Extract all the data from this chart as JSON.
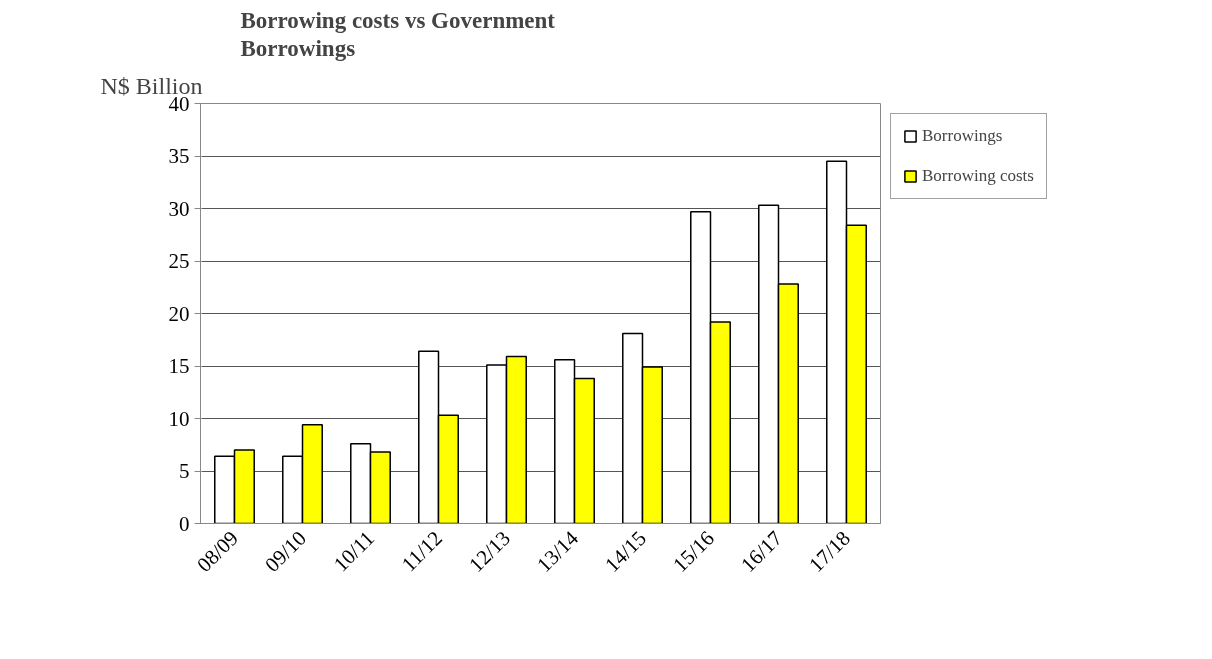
{
  "chart_data": {
    "type": "bar",
    "title": "Borrowing costs vs Government Borrowings",
    "ylabel": "N$ Billion",
    "categories": [
      "08/09",
      "09/10",
      "10/11",
      "11/12",
      "12/13",
      "13/14",
      "14/15",
      "15/16",
      "16/17",
      "17/18"
    ],
    "series": [
      {
        "name": "Borrowings",
        "color": "#ffffff",
        "values": [
          6.4,
          6.4,
          7.6,
          16.4,
          15.1,
          15.6,
          18.1,
          29.7,
          30.3,
          34.5
        ]
      },
      {
        "name": "Borrowing costs",
        "color": "#ffff00",
        "values": [
          7.0,
          9.4,
          6.8,
          10.3,
          15.9,
          13.8,
          14.9,
          19.2,
          22.8,
          28.4
        ]
      }
    ],
    "ylim": [
      0,
      40
    ],
    "yticks": [
      0,
      5,
      10,
      15,
      20,
      25,
      30,
      35,
      40
    ],
    "grid": "y",
    "legend": "right"
  }
}
